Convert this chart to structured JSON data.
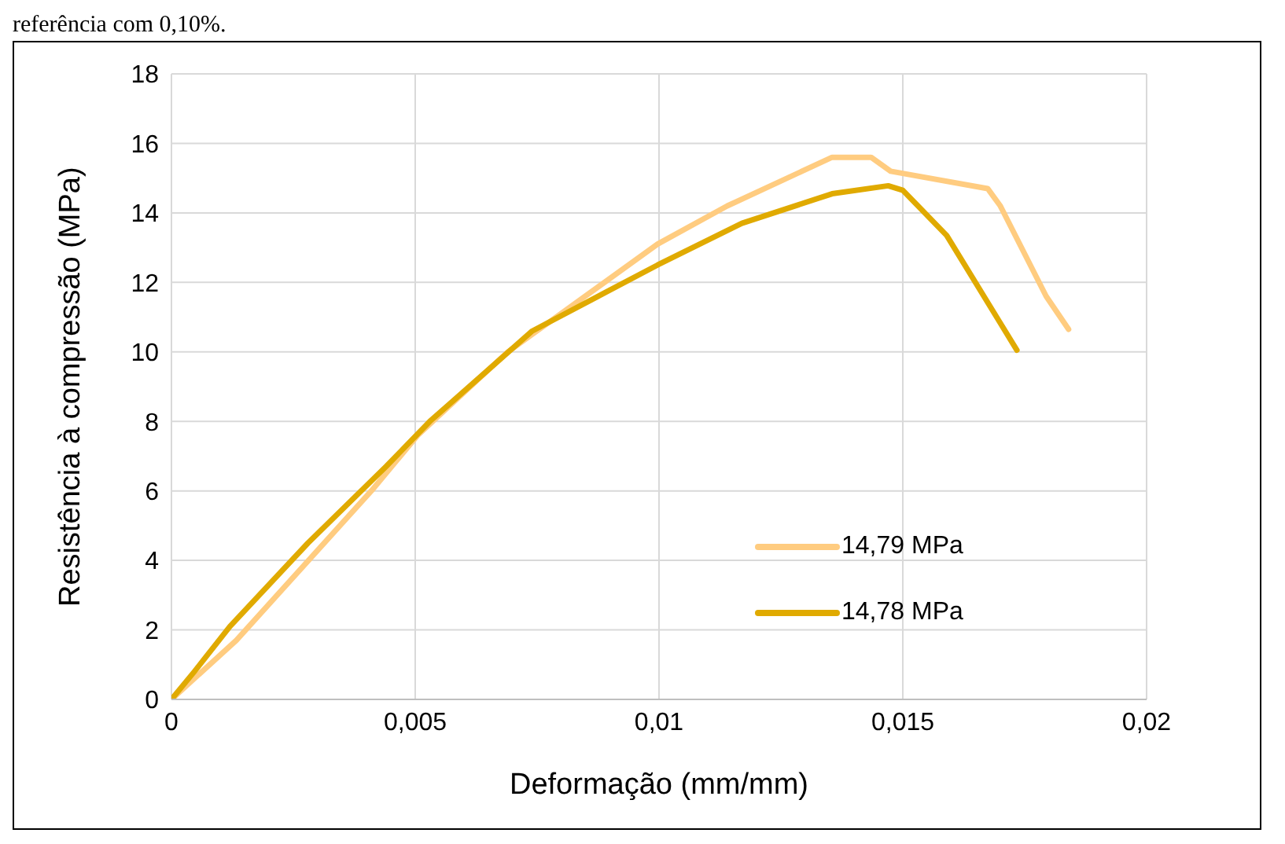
{
  "chart_data": {
    "type": "line",
    "xlabel": "Deformação (mm/mm)",
    "ylabel": "Resistência à compressão (MPa)",
    "annotations": [
      "referência com 0,10%."
    ],
    "xlim": [
      0,
      0.02
    ],
    "xticks": [
      0,
      {
        "value": 0.005,
        "label": "0,005"
      },
      {
        "value": 0.01,
        "label": "0,01"
      },
      {
        "value": 0.015,
        "label": "0,015"
      },
      {
        "value": 0.02,
        "label": "0,02"
      }
    ],
    "ylim": [
      0,
      18
    ],
    "yticks": [
      0,
      2,
      4,
      6,
      8,
      10,
      12,
      14,
      16,
      18
    ],
    "grid": true,
    "legend": "bottom right",
    "marker": "none",
    "line_style": "solid",
    "series": [
      {
        "name": "14,79 MPa",
        "color": "#ffcc80",
        "x": [
          0,
          0.00133,
          0.0041,
          0.00505,
          0.0069,
          0.00997,
          0.0114,
          0.01355,
          0.01435,
          0.01475,
          0.01674,
          0.017,
          0.01794,
          0.0184
        ],
        "values": [
          0,
          1.7,
          6.0,
          7.6,
          10.0,
          13.1,
          14.2,
          15.6,
          15.6,
          15.2,
          14.7,
          14.2,
          11.6,
          10.65
        ]
      },
      {
        "name": "14,78 MPa",
        "color": "#e0aa00",
        "x": [
          0,
          0.00047,
          0.0012,
          0.0028,
          0.0044,
          0.0053,
          0.0074,
          0.00997,
          0.0117,
          0.01355,
          0.0147,
          0.015,
          0.0159,
          0.01734
        ],
        "values": [
          0,
          0.8,
          2.1,
          4.5,
          6.7,
          8.0,
          10.6,
          12.5,
          13.7,
          14.55,
          14.78,
          14.65,
          13.35,
          10.05
        ]
      }
    ]
  }
}
